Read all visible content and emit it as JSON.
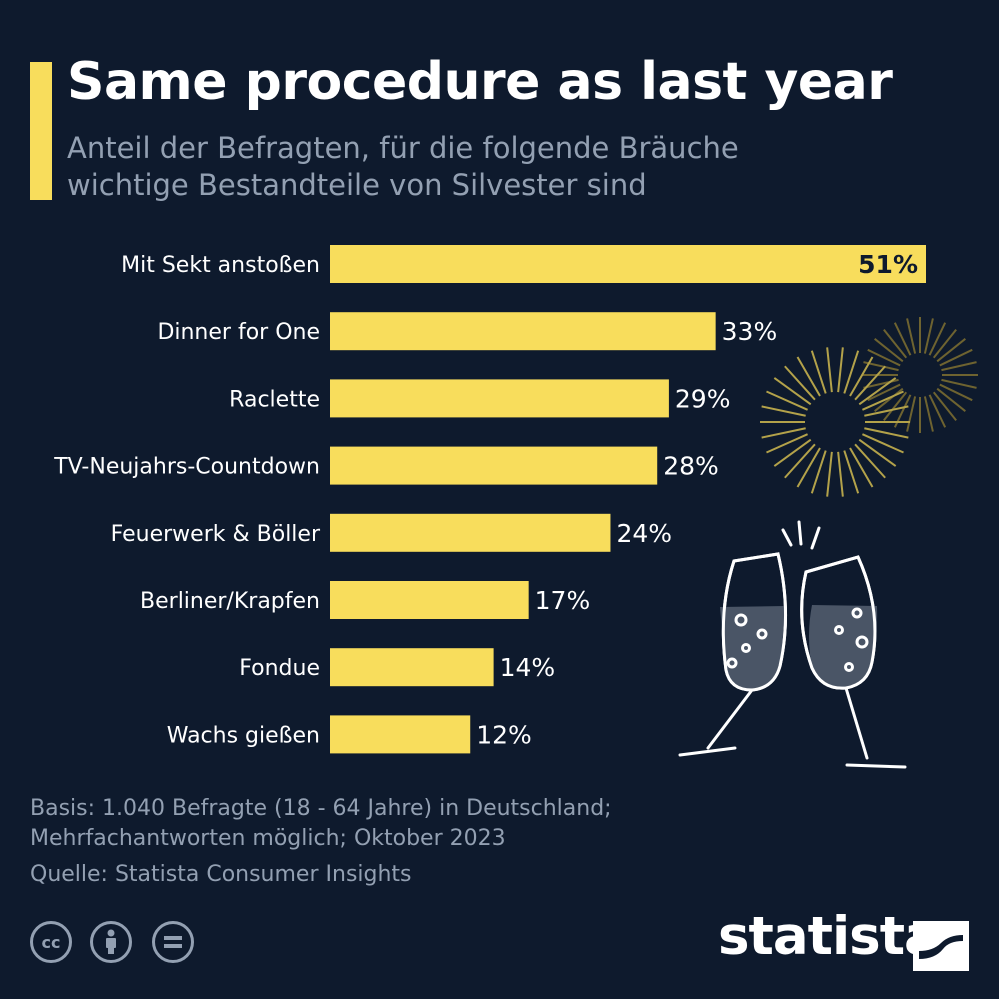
{
  "header": {
    "title": "Same procedure as last year",
    "subtitle": "Anteil der Befragten, für die folgende Bräuche wichtige Bestandteile von Silvester sind"
  },
  "colors": {
    "background": "#0e1a2d",
    "accent": "#f8dd5c",
    "text": "#ffffff",
    "muted": "#93a0b2"
  },
  "chart_data": {
    "type": "bar",
    "orientation": "horizontal",
    "title": "Same procedure as last year",
    "subtitle": "Anteil der Befragten, für die folgende Bräuche wichtige Bestandteile von Silvester sind",
    "categories": [
      "Mit Sekt anstoßen",
      "Dinner for One",
      "Raclette",
      "TV-Neujahrs-Countdown",
      "Feuerwerk & Böller",
      "Berliner/Krapfen",
      "Fondue",
      "Wachs gießen"
    ],
    "values": [
      51,
      33,
      29,
      28,
      24,
      17,
      14,
      12
    ],
    "value_labels": [
      "51%",
      "33%",
      "29%",
      "28%",
      "24%",
      "17%",
      "14%",
      "12%"
    ],
    "unit": "%",
    "grid": false
  },
  "footer": {
    "basis_line1": "Basis: 1.040 Befragte (18 - 64 Jahre) in Deutschland;",
    "basis_line2": "Mehrfachantworten möglich; Oktober 2023",
    "source": "Quelle: Statista Consumer Insights"
  },
  "license_icons": [
    "cc-icon",
    "by-icon",
    "nd-icon"
  ],
  "brand": {
    "name": "statista"
  },
  "decorations": [
    "firework-burst-icon",
    "champagne-glasses-icon"
  ]
}
